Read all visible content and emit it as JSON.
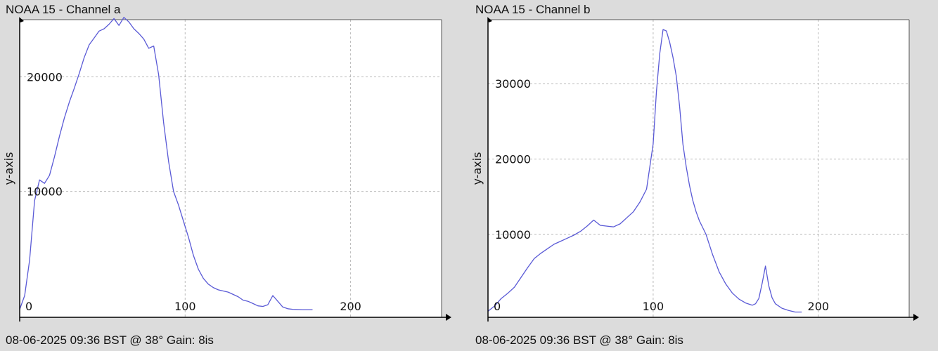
{
  "charts": [
    {
      "title": "NOAA 15 - Channel a",
      "footer": "08-06-2025 09:36 BST @ 38° Gain: 8is"
    },
    {
      "title": "NOAA 15 - Channel b",
      "footer": "08-06-2025 09:36 BST @ 38° Gain: 8is"
    }
  ],
  "chart_data": [
    {
      "type": "line",
      "title": "NOAA 15 - Channel a",
      "xlabel": "",
      "ylabel": "y-axis",
      "xlim": [
        0,
        255
      ],
      "ylim": [
        -1000,
        25000
      ],
      "xticks": [
        0,
        100,
        200
      ],
      "yticks": [
        10000,
        20000
      ],
      "grid": true,
      "line_color": "#5a5ad6",
      "x": [
        0,
        3,
        6,
        9,
        12,
        15,
        18,
        21,
        24,
        27,
        30,
        33,
        36,
        39,
        42,
        45,
        48,
        51,
        54,
        57,
        60,
        63,
        66,
        69,
        72,
        75,
        78,
        81,
        84,
        87,
        90,
        93,
        96,
        99,
        102,
        105,
        108,
        111,
        114,
        117,
        120,
        123,
        126,
        129,
        132,
        135,
        138,
        141,
        144,
        147,
        150,
        153,
        156,
        159,
        162,
        165,
        168,
        171,
        174,
        177
      ],
      "y": [
        -300,
        900,
        4000,
        9200,
        11000,
        10700,
        11400,
        13000,
        14800,
        16400,
        17800,
        19000,
        20300,
        21700,
        22800,
        23400,
        24000,
        24200,
        24600,
        25100,
        24500,
        25200,
        24800,
        24200,
        23800,
        23300,
        22500,
        22700,
        20200,
        16000,
        12600,
        10000,
        8800,
        7400,
        6000,
        4400,
        3200,
        2400,
        1900,
        1600,
        1400,
        1300,
        1200,
        1000,
        800,
        500,
        400,
        200,
        0,
        -50,
        100,
        900,
        400,
        -100,
        -250,
        -300,
        -320,
        -330,
        -330,
        -330
      ]
    },
    {
      "type": "line",
      "title": "NOAA 15 - Channel b",
      "xlabel": "",
      "ylabel": "y-axis",
      "xlim": [
        0,
        255
      ],
      "ylim": [
        -1000,
        38500
      ],
      "xticks": [
        0,
        100,
        200
      ],
      "yticks": [
        10000,
        20000,
        30000
      ],
      "grid": true,
      "line_color": "#5a5ad6",
      "x": [
        0,
        4,
        8,
        12,
        16,
        20,
        24,
        28,
        32,
        36,
        40,
        44,
        48,
        52,
        56,
        60,
        64,
        68,
        72,
        76,
        80,
        84,
        88,
        92,
        96,
        100,
        102,
        104,
        106,
        108,
        110,
        112,
        114,
        116,
        118,
        120,
        122,
        124,
        126,
        128,
        132,
        136,
        140,
        144,
        148,
        152,
        156,
        160,
        162,
        164,
        166,
        168,
        170,
        172,
        174,
        178,
        182,
        186,
        190
      ],
      "y": [
        -200,
        500,
        1500,
        2200,
        3000,
        4300,
        5600,
        6800,
        7500,
        8100,
        8700,
        9100,
        9500,
        9900,
        10400,
        11100,
        11900,
        11200,
        11100,
        11000,
        11400,
        12200,
        13000,
        14300,
        16000,
        22000,
        29000,
        34000,
        37200,
        37000,
        35500,
        33500,
        31000,
        27000,
        22000,
        19000,
        16500,
        14500,
        13000,
        11800,
        10000,
        7300,
        5000,
        3400,
        2200,
        1400,
        900,
        600,
        800,
        1500,
        3500,
        5800,
        3200,
        1600,
        800,
        200,
        -100,
        -300,
        -300
      ]
    }
  ]
}
